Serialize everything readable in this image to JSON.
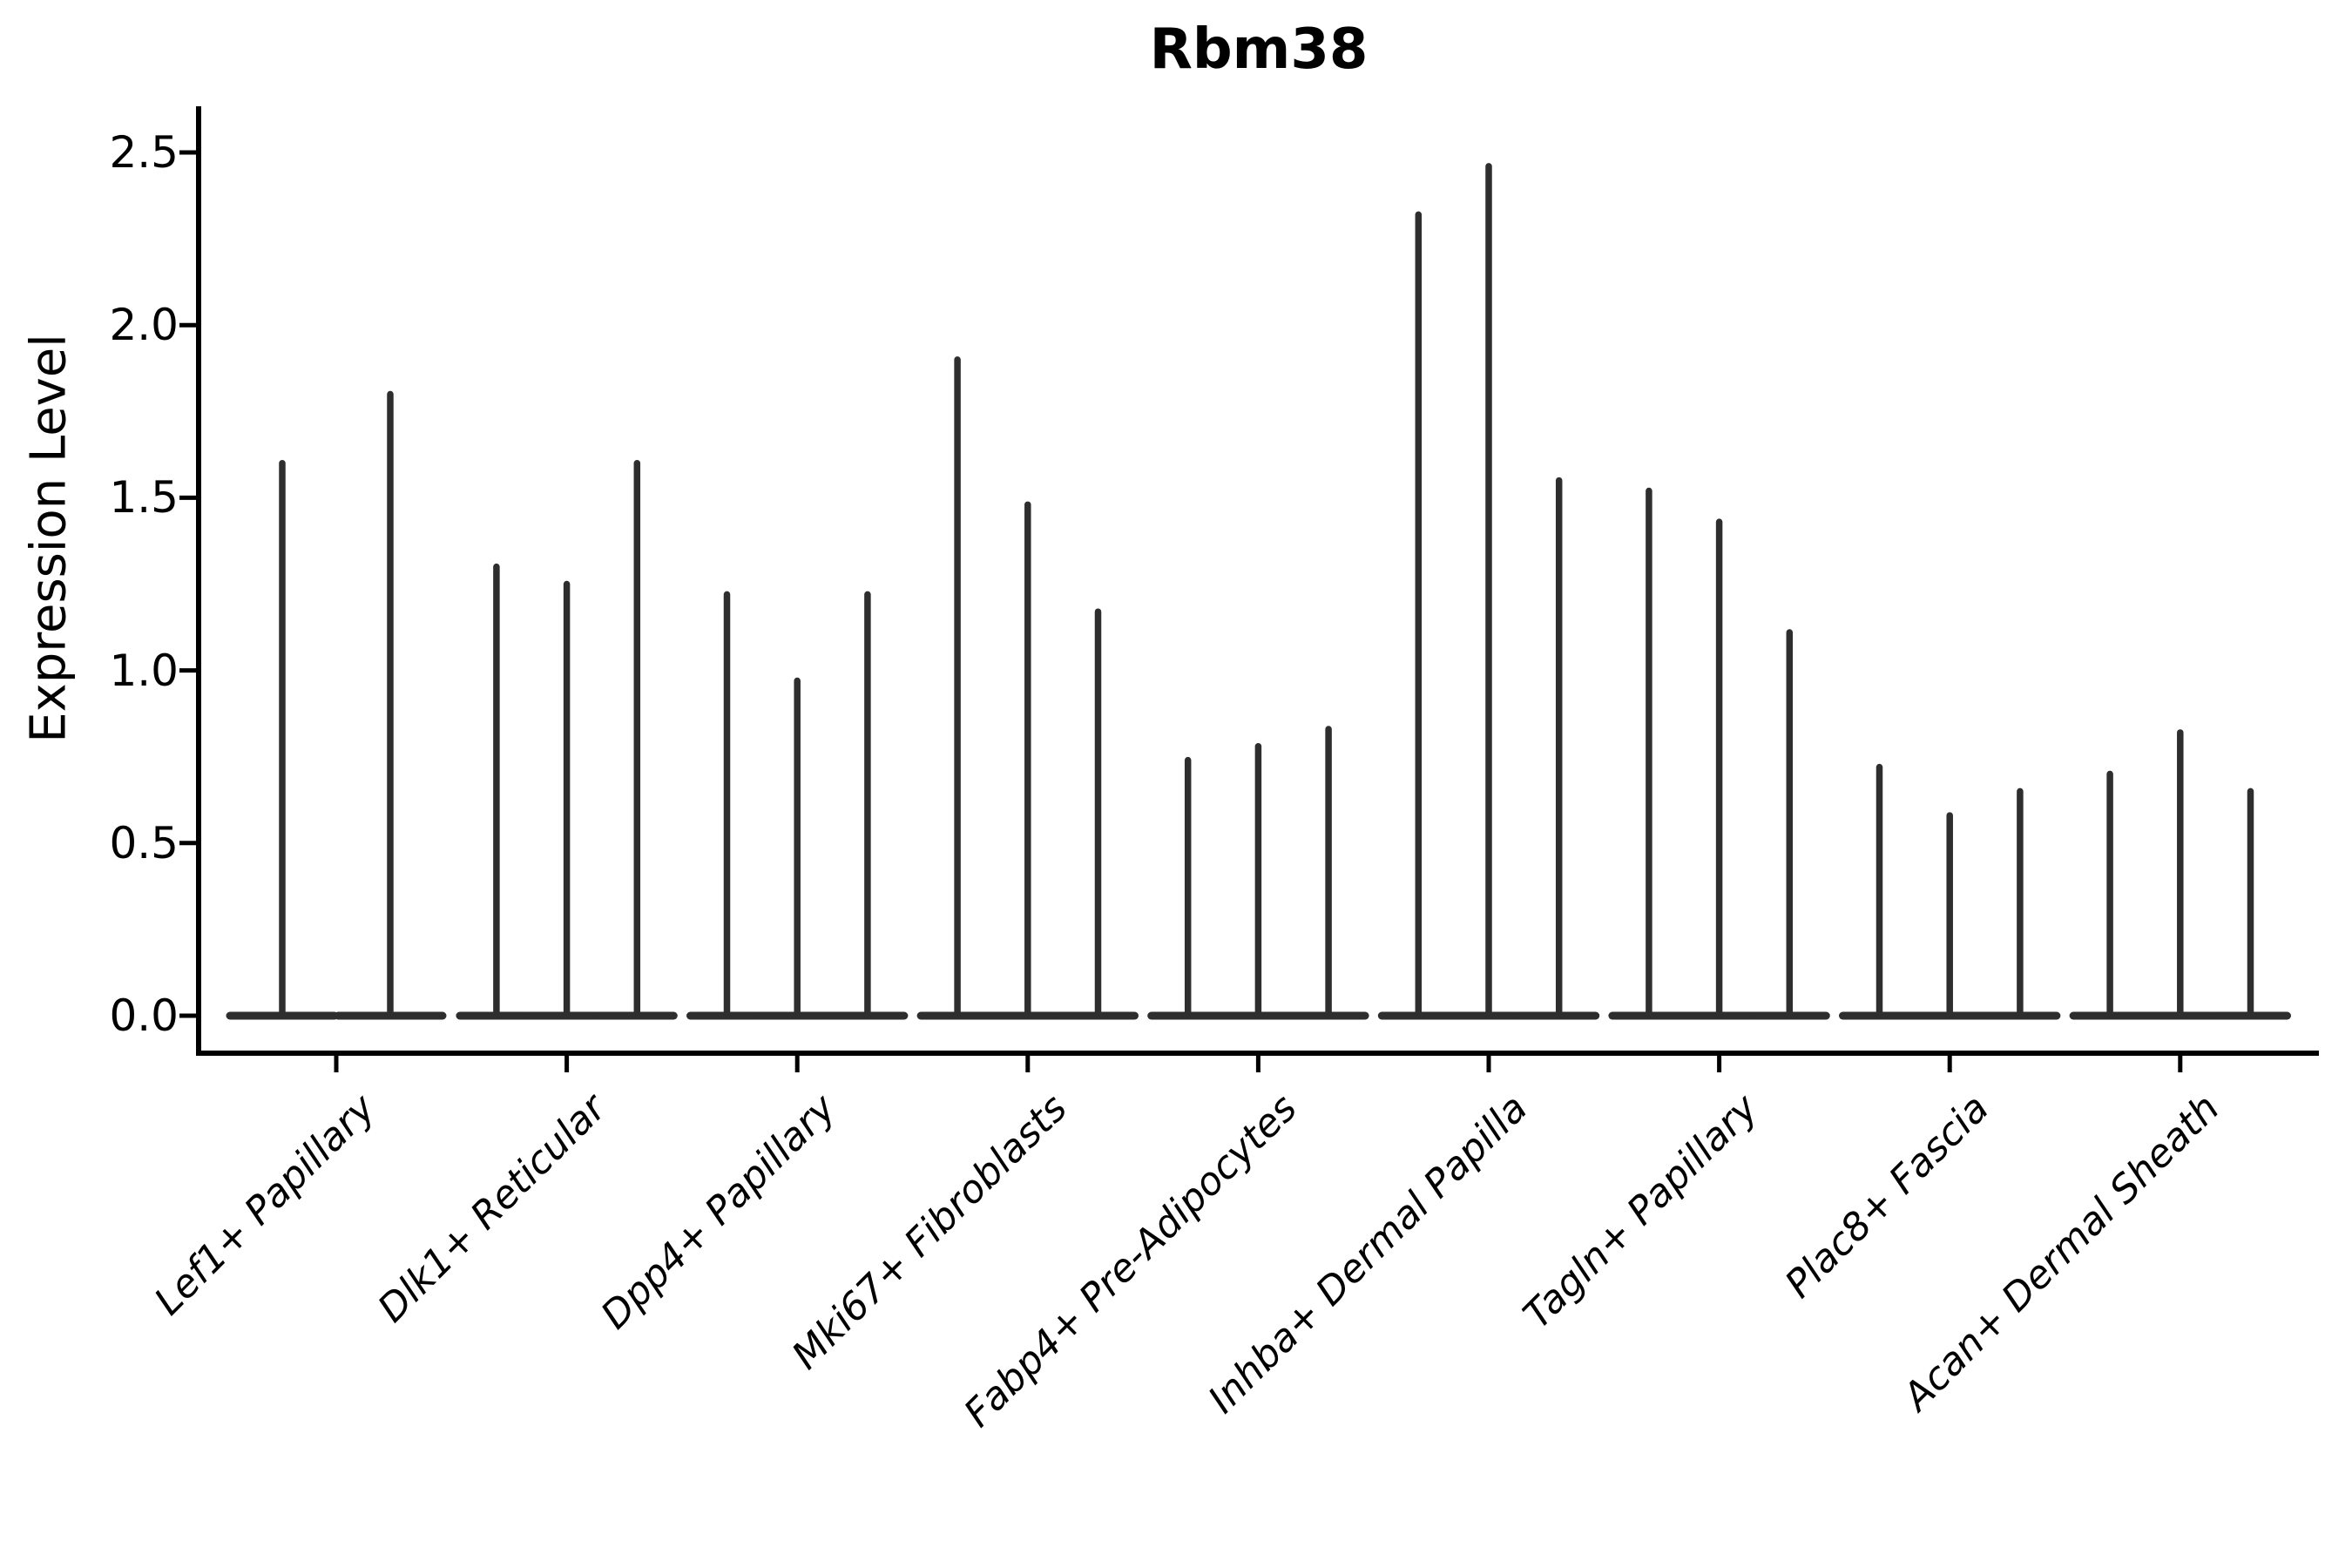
{
  "title": "Rbm38",
  "ylabel": "Expression Level",
  "chart_data": {
    "type": "violin",
    "title": "Rbm38",
    "xlabel": "",
    "ylabel": "Expression Level",
    "ylim": [
      0,
      2.5
    ],
    "yticks": [
      0.0,
      0.5,
      1.0,
      1.5,
      2.0,
      2.5
    ],
    "ytick_labels": [
      "0.0",
      "0.5",
      "1.0",
      "1.5",
      "2.0",
      "2.5"
    ],
    "grid": false,
    "legend": "none",
    "violin_color": "#2e2e2e",
    "axis_color": "#000000",
    "description": "Needle-style violins: nearly all density at expression 0 (wide flat base) with a thin tail rising to the maximum expression value; 2-3 violins (samples) per cell-type category.",
    "categories": [
      "Lef1+ Papillary",
      "Dlk1+ Reticular",
      "Dpp4+ Papillary",
      "Mki67+ Fibroblasts",
      "Fabp4+ Pre-Adipocytes",
      "Inhba+ Dermal Papilla",
      "Tagln+ Papillary",
      "Plac8+ Fascia",
      "Acan+ Dermal Sheath"
    ],
    "series": [
      {
        "category": "Lef1+ Papillary",
        "violin_tail_max": [
          1.6,
          1.8
        ]
      },
      {
        "category": "Dlk1+ Reticular",
        "violin_tail_max": [
          1.3,
          1.25,
          1.6
        ]
      },
      {
        "category": "Dpp4+ Papillary",
        "violin_tail_max": [
          1.22,
          0.97,
          1.22
        ]
      },
      {
        "category": "Mki67+ Fibroblasts",
        "violin_tail_max": [
          1.9,
          1.48,
          1.17
        ]
      },
      {
        "category": "Fabp4+ Pre-Adipocytes",
        "violin_tail_max": [
          0.74,
          0.78,
          0.83
        ]
      },
      {
        "category": "Inhba+ Dermal Papilla",
        "violin_tail_max": [
          2.32,
          2.46,
          1.55
        ]
      },
      {
        "category": "Tagln+ Papillary",
        "violin_tail_max": [
          1.52,
          1.43,
          1.11
        ]
      },
      {
        "category": "Plac8+ Fascia",
        "violin_tail_max": [
          0.72,
          0.58,
          0.65
        ]
      },
      {
        "category": "Acan+ Dermal Sheath",
        "violin_tail_max": [
          0.7,
          0.82,
          0.65
        ]
      }
    ]
  }
}
